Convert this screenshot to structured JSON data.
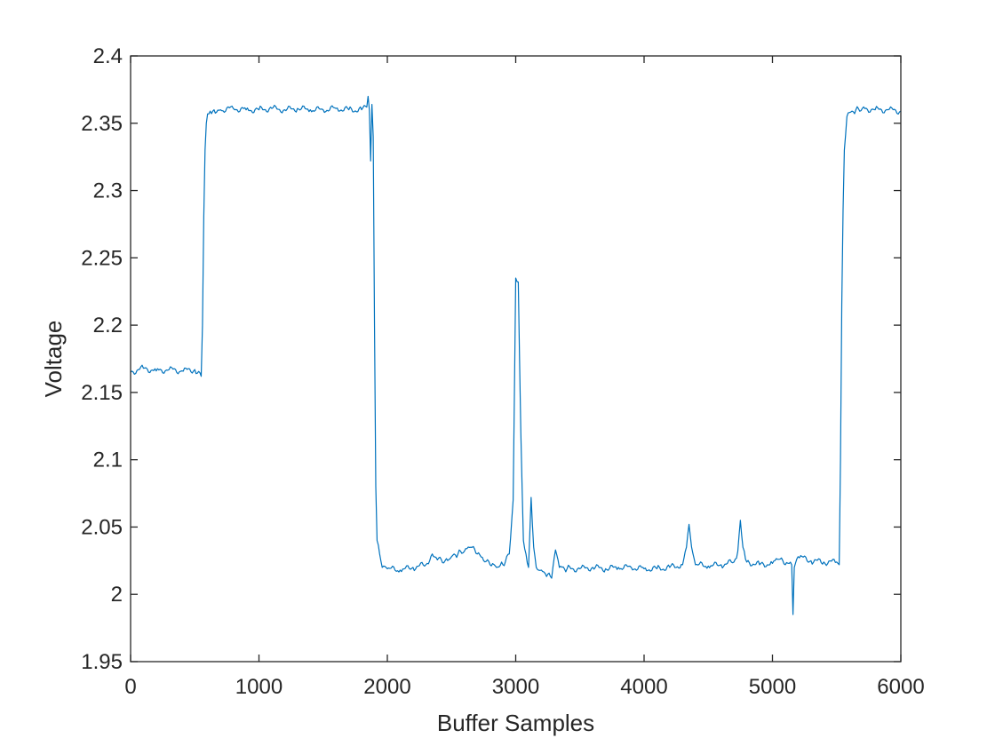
{
  "chart_data": {
    "type": "line",
    "title": "",
    "xlabel": "Buffer Samples",
    "ylabel": "Voltage",
    "xlim": [
      0,
      6000
    ],
    "ylim": [
      1.95,
      2.4
    ],
    "x_ticks": [
      0,
      1000,
      2000,
      3000,
      4000,
      5000,
      6000
    ],
    "x_tick_labels": [
      "0",
      "1000",
      "2000",
      "3000",
      "4000",
      "5000",
      "6000"
    ],
    "y_ticks": [
      1.95,
      2,
      2.05,
      2.1,
      2.15,
      2.2,
      2.25,
      2.3,
      2.35,
      2.4
    ],
    "y_tick_labels": [
      "1.95",
      "2",
      "2.05",
      "2.1",
      "2.15",
      "2.2",
      "2.25",
      "2.3",
      "2.35",
      "2.4"
    ],
    "grid": false,
    "box": true,
    "line_color": "#0072bd",
    "series": [
      {
        "x": [
          0,
          100,
          200,
          300,
          400,
          500,
          550,
          560,
          570,
          580,
          590,
          600,
          620,
          650,
          700,
          800,
          900,
          1000,
          1100,
          1200,
          1300,
          1400,
          1500,
          1600,
          1700,
          1800,
          1840,
          1850,
          1860,
          1870,
          1880,
          1890,
          1900,
          1910,
          1920,
          1940,
          1960,
          2000,
          2100,
          2200,
          2300,
          2350,
          2400,
          2450,
          2500,
          2550,
          2600,
          2650,
          2700,
          2750,
          2800,
          2850,
          2900,
          2950,
          2980,
          3000,
          3020,
          3040,
          3060,
          3080,
          3100,
          3120,
          3140,
          3160,
          3200,
          3250,
          3280,
          3310,
          3340,
          3400,
          3500,
          3600,
          3700,
          3800,
          3900,
          4000,
          4100,
          4200,
          4300,
          4330,
          4350,
          4370,
          4400,
          4500,
          4600,
          4700,
          4730,
          4750,
          4770,
          4800,
          4900,
          5000,
          5050,
          5100,
          5150,
          5160,
          5170,
          5200,
          5300,
          5400,
          5500,
          5520,
          5530,
          5540,
          5550,
          5560,
          5580,
          5600,
          5650,
          5700,
          5800,
          5900,
          6000
        ],
        "y": [
          2.165,
          2.168,
          2.166,
          2.167,
          2.166,
          2.167,
          2.162,
          2.2,
          2.28,
          2.33,
          2.35,
          2.357,
          2.359,
          2.36,
          2.36,
          2.361,
          2.36,
          2.36,
          2.361,
          2.36,
          2.361,
          2.36,
          2.36,
          2.361,
          2.36,
          2.36,
          2.362,
          2.37,
          2.36,
          2.322,
          2.364,
          2.34,
          2.2,
          2.08,
          2.04,
          2.03,
          2.02,
          2.019,
          2.018,
          2.02,
          2.022,
          2.03,
          2.027,
          2.025,
          2.028,
          2.03,
          2.032,
          2.035,
          2.03,
          2.025,
          2.022,
          2.02,
          2.022,
          2.03,
          2.07,
          2.235,
          2.232,
          2.12,
          2.04,
          2.03,
          2.02,
          2.072,
          2.035,
          2.02,
          2.018,
          2.015,
          2.012,
          2.033,
          2.02,
          2.019,
          2.019,
          2.02,
          2.019,
          2.02,
          2.02,
          2.019,
          2.019,
          2.02,
          2.022,
          2.035,
          2.052,
          2.035,
          2.022,
          2.021,
          2.022,
          2.024,
          2.032,
          2.055,
          2.035,
          2.024,
          2.022,
          2.023,
          2.026,
          2.022,
          2.022,
          1.985,
          2.02,
          2.028,
          2.025,
          2.024,
          2.024,
          2.022,
          2.1,
          2.215,
          2.285,
          2.33,
          2.355,
          2.358,
          2.36,
          2.361,
          2.36,
          2.36,
          2.359
        ]
      }
    ]
  }
}
